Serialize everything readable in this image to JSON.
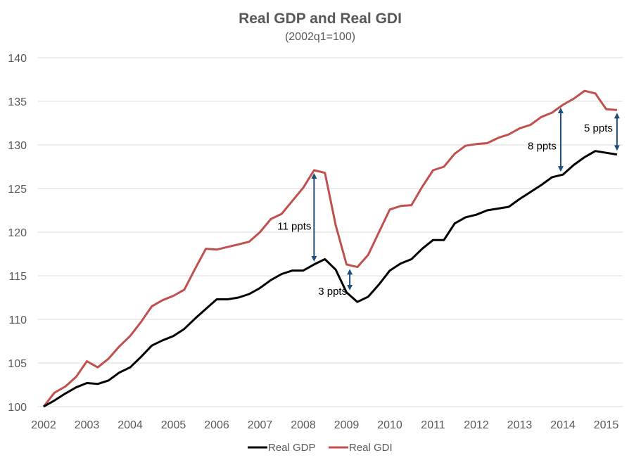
{
  "chart_data": {
    "type": "line",
    "title": "Real GDP and Real GDI",
    "subtitle": "(2002q1=100)",
    "xlabel": "",
    "ylabel": "",
    "ylim": [
      100,
      140
    ],
    "yticks": [
      "100",
      "105",
      "110",
      "115",
      "120",
      "125",
      "130",
      "135",
      "140"
    ],
    "ytick_values": [
      100,
      105,
      110,
      115,
      120,
      125,
      130,
      135,
      140
    ],
    "xticks": [
      "2002",
      "2003",
      "2004",
      "2005",
      "2006",
      "2007",
      "2008",
      "2009",
      "2010",
      "2011",
      "2012",
      "2013",
      "2014",
      "2015"
    ],
    "x_start": "2002q1",
    "x_frequency": "quarterly",
    "grid": true,
    "legend_position": "bottom",
    "series": [
      {
        "name": "Real GDP",
        "color": "#000000",
        "values": [
          100,
          100.7,
          101.5,
          102.2,
          102.7,
          102.6,
          103.0,
          103.9,
          104.5,
          105.7,
          107.0,
          107.6,
          108.1,
          108.9,
          110.1,
          111.2,
          112.3,
          112.3,
          112.5,
          112.9,
          113.6,
          114.5,
          115.2,
          115.6,
          115.6,
          116.3,
          116.9,
          115.7,
          113.1,
          112.0,
          112.6,
          114.0,
          115.6,
          116.4,
          116.9,
          118.1,
          119.1,
          119.1,
          121.0,
          121.7,
          122.0,
          122.5,
          122.7,
          122.9,
          123.8,
          124.6,
          125.4,
          126.3,
          126.6,
          127.7,
          128.6,
          129.3,
          129.1,
          128.9
        ]
      },
      {
        "name": "Real GDI",
        "color": "#c0504d",
        "values": [
          100,
          101.6,
          102.3,
          103.4,
          105.2,
          104.5,
          105.5,
          106.9,
          108.1,
          109.7,
          111.5,
          112.2,
          112.7,
          113.4,
          115.8,
          118.1,
          118.0,
          118.3,
          118.6,
          118.9,
          120.0,
          121.5,
          122.1,
          123.6,
          125.1,
          127.1,
          126.8,
          120.8,
          116.3,
          116.0,
          117.4,
          120.0,
          122.6,
          123.0,
          123.1,
          125.2,
          127.1,
          127.5,
          129.0,
          129.9,
          130.1,
          130.2,
          130.8,
          131.2,
          131.9,
          132.3,
          133.2,
          133.7,
          134.6,
          135.3,
          136.2,
          135.9,
          134.1,
          134.0
        ]
      }
    ],
    "annotations": [
      {
        "label": "11 ppts",
        "quarter_index": 25,
        "from": 127.1,
        "to": 116.3,
        "color": "#1f4e79"
      },
      {
        "label": "3 ppts",
        "quarter_index": 28.3,
        "from": 116.1,
        "to": 113.0,
        "color": "#1f4e79"
      },
      {
        "label": "8 ppts",
        "quarter_index": 47.8,
        "from": 134.6,
        "to": 126.6,
        "color": "#1f4e79"
      },
      {
        "label": "5 ppts",
        "quarter_index": 53,
        "from": 134.0,
        "to": 129.0,
        "color": "#1f4e79"
      }
    ]
  }
}
